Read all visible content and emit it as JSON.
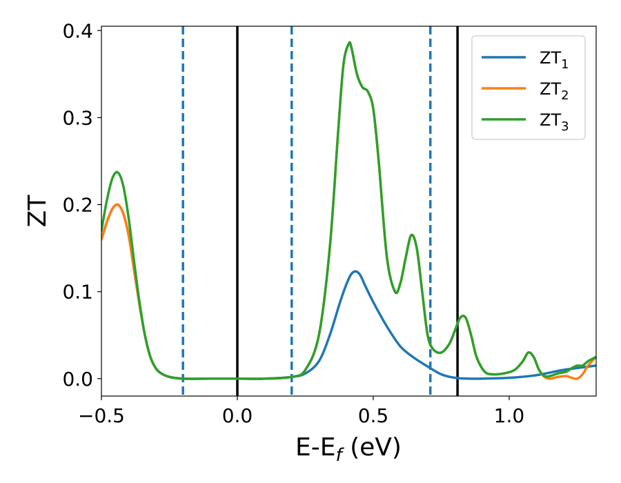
{
  "chart_data": {
    "type": "line",
    "xlabel": "E-E",
    "xlabel_sub": "f",
    "xlabel_unit": " (eV)",
    "ylabel": "ZT",
    "xlim": [
      -0.5,
      1.32
    ],
    "ylim": [
      -0.02,
      0.405
    ],
    "xticks": [
      {
        "value": -0.5,
        "label": "−0.5"
      },
      {
        "value": 0.0,
        "label": "0.0"
      },
      {
        "value": 0.5,
        "label": "0.5"
      },
      {
        "value": 1.0,
        "label": "1.0"
      }
    ],
    "yticks": [
      {
        "value": 0.0,
        "label": "0.0"
      },
      {
        "value": 0.1,
        "label": "0.1"
      },
      {
        "value": 0.2,
        "label": "0.2"
      },
      {
        "value": 0.3,
        "label": "0.3"
      },
      {
        "value": 0.4,
        "label": "0.4"
      }
    ],
    "legend_position": "top-right",
    "vlines": [
      {
        "x": -0.2,
        "style": "dashed",
        "color": "#1f77b4"
      },
      {
        "x": 0.0,
        "style": "solid",
        "color": "#000000"
      },
      {
        "x": 0.2,
        "style": "dashed",
        "color": "#1f77b4"
      },
      {
        "x": 0.71,
        "style": "dashed",
        "color": "#1f77b4"
      },
      {
        "x": 0.81,
        "style": "solid",
        "color": "#000000"
      }
    ],
    "series": [
      {
        "name": "ZT",
        "name_sub": "1",
        "color": "#1f77b4",
        "x": [
          -0.5,
          -0.48,
          -0.46,
          -0.44,
          -0.42,
          -0.4,
          -0.38,
          -0.36,
          -0.34,
          -0.32,
          -0.3,
          -0.28,
          -0.25,
          -0.2,
          -0.1,
          0.0,
          0.1,
          0.2,
          0.25,
          0.3,
          0.34,
          0.38,
          0.41,
          0.43,
          0.45,
          0.47,
          0.5,
          0.55,
          0.6,
          0.65,
          0.7,
          0.75,
          0.8,
          0.85,
          0.9,
          1.0,
          1.1,
          1.2,
          1.32
        ],
        "y": [
          0.16,
          0.18,
          0.195,
          0.2,
          0.19,
          0.165,
          0.125,
          0.085,
          0.05,
          0.025,
          0.012,
          0.006,
          0.002,
          0.0,
          0.0,
          0.0,
          0.0,
          0.002,
          0.006,
          0.02,
          0.05,
          0.09,
          0.115,
          0.123,
          0.12,
          0.107,
          0.088,
          0.06,
          0.037,
          0.024,
          0.014,
          0.005,
          0.001,
          0.0,
          0.0,
          0.001,
          0.004,
          0.01,
          0.015
        ]
      },
      {
        "name": "ZT",
        "name_sub": "2",
        "color": "#ff7f0e",
        "x": [
          -0.5,
          -0.48,
          -0.46,
          -0.44,
          -0.42,
          -0.4,
          -0.38,
          -0.36,
          -0.34,
          -0.32,
          -0.3,
          -0.28,
          -0.25,
          -0.2,
          -0.1,
          0.0,
          0.1,
          0.2,
          0.25,
          0.3,
          0.34,
          0.37,
          0.39,
          0.41,
          0.42,
          0.44,
          0.46,
          0.48,
          0.5,
          0.52,
          0.55,
          0.58,
          0.6,
          0.62,
          0.64,
          0.66,
          0.68,
          0.7,
          0.72,
          0.75,
          0.78,
          0.8,
          0.82,
          0.84,
          0.86,
          0.88,
          0.91,
          0.94,
          0.98,
          1.02,
          1.05,
          1.07,
          1.09,
          1.11,
          1.13,
          1.15,
          1.18,
          1.21,
          1.23,
          1.25,
          1.27,
          1.29,
          1.32
        ],
        "y": [
          0.16,
          0.18,
          0.195,
          0.2,
          0.19,
          0.165,
          0.125,
          0.085,
          0.05,
          0.025,
          0.012,
          0.006,
          0.002,
          0.0,
          0.0,
          0.0,
          0.0,
          0.002,
          0.01,
          0.05,
          0.15,
          0.28,
          0.36,
          0.385,
          0.38,
          0.35,
          0.335,
          0.33,
          0.31,
          0.25,
          0.14,
          0.1,
          0.11,
          0.14,
          0.165,
          0.15,
          0.1,
          0.05,
          0.034,
          0.03,
          0.04,
          0.055,
          0.07,
          0.07,
          0.05,
          0.025,
          0.008,
          0.005,
          0.006,
          0.01,
          0.02,
          0.03,
          0.025,
          0.01,
          0.002,
          0.0,
          0.002,
          0.003,
          0.001,
          0.0,
          0.005,
          0.015,
          0.025
        ]
      },
      {
        "name": "ZT",
        "name_sub": "3",
        "color": "#2ca02c",
        "x": [
          -0.5,
          -0.48,
          -0.46,
          -0.44,
          -0.42,
          -0.4,
          -0.38,
          -0.36,
          -0.34,
          -0.32,
          -0.3,
          -0.28,
          -0.25,
          -0.2,
          -0.1,
          0.0,
          0.1,
          0.2,
          0.25,
          0.3,
          0.34,
          0.37,
          0.39,
          0.41,
          0.42,
          0.44,
          0.46,
          0.48,
          0.5,
          0.52,
          0.55,
          0.58,
          0.6,
          0.62,
          0.64,
          0.66,
          0.68,
          0.7,
          0.72,
          0.75,
          0.78,
          0.8,
          0.82,
          0.84,
          0.86,
          0.88,
          0.91,
          0.94,
          0.98,
          1.02,
          1.05,
          1.07,
          1.09,
          1.11,
          1.13,
          1.15,
          1.18,
          1.21,
          1.23,
          1.25,
          1.27,
          1.29,
          1.32
        ],
        "y": [
          0.17,
          0.205,
          0.23,
          0.237,
          0.222,
          0.185,
          0.135,
          0.088,
          0.05,
          0.025,
          0.012,
          0.006,
          0.002,
          0.0,
          0.0,
          0.0,
          0.0,
          0.002,
          0.01,
          0.05,
          0.15,
          0.28,
          0.36,
          0.385,
          0.38,
          0.35,
          0.335,
          0.33,
          0.31,
          0.25,
          0.14,
          0.1,
          0.11,
          0.14,
          0.165,
          0.15,
          0.1,
          0.05,
          0.034,
          0.03,
          0.04,
          0.055,
          0.07,
          0.07,
          0.05,
          0.025,
          0.008,
          0.005,
          0.006,
          0.01,
          0.02,
          0.03,
          0.025,
          0.01,
          0.003,
          0.003,
          0.006,
          0.008,
          0.012,
          0.015,
          0.015,
          0.02,
          0.025
        ]
      }
    ]
  }
}
